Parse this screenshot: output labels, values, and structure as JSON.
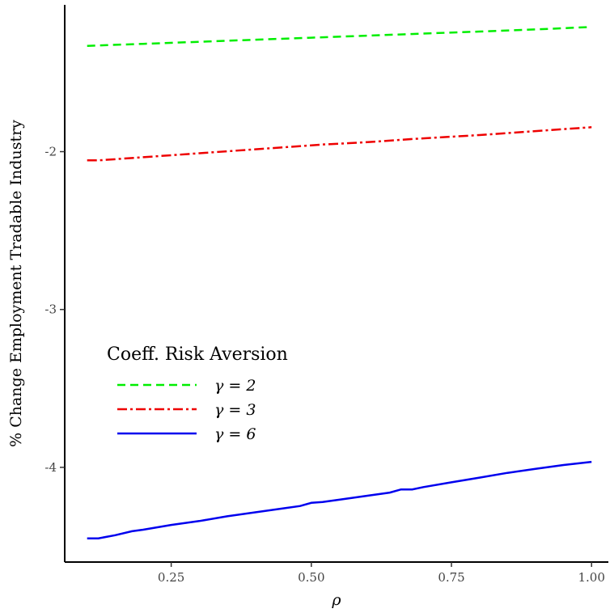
{
  "chart_data": {
    "type": "line",
    "title": "",
    "xlabel": "ρ",
    "ylabel": "% Change Employment Tradable Industry",
    "xlim": [
      0.06,
      1.03
    ],
    "ylim": [
      -4.6,
      -1.07
    ],
    "xticks": [
      0.25,
      0.5,
      0.75,
      1.0
    ],
    "xtick_labels": [
      "0.25",
      "0.50",
      "0.75",
      "1.00"
    ],
    "yticks": [
      -4,
      -3,
      -2
    ],
    "ytick_labels": [
      "-4",
      "-3",
      "-2"
    ],
    "grid": false,
    "legend": {
      "title": "Coeff. Risk Aversion",
      "placement": "center-left"
    },
    "series": [
      {
        "name": "γ = 2",
        "color": "#00ee00",
        "dash": "dashed",
        "x": [
          0.1,
          0.2,
          0.3,
          0.4,
          0.5,
          0.6,
          0.7,
          0.8,
          0.9,
          1.0
        ],
        "y": [
          -1.33,
          -1.317,
          -1.304,
          -1.291,
          -1.278,
          -1.265,
          -1.252,
          -1.239,
          -1.226,
          -1.21
        ]
      },
      {
        "name": "γ = 3",
        "color": "#ee0000",
        "dash": "dotdash",
        "x": [
          0.1,
          0.12,
          0.2,
          0.3,
          0.4,
          0.5,
          0.52,
          0.6,
          0.66,
          0.68,
          0.8,
          0.9,
          1.0
        ],
        "y": [
          -2.055,
          -2.055,
          -2.035,
          -2.01,
          -1.985,
          -1.96,
          -1.955,
          -1.94,
          -1.925,
          -1.92,
          -1.895,
          -1.87,
          -1.845
        ]
      },
      {
        "name": "γ = 6",
        "color": "#0000ee",
        "dash": "solid",
        "x": [
          0.1,
          0.12,
          0.15,
          0.18,
          0.2,
          0.25,
          0.3,
          0.35,
          0.4,
          0.45,
          0.48,
          0.5,
          0.52,
          0.55,
          0.6,
          0.64,
          0.66,
          0.68,
          0.7,
          0.75,
          0.8,
          0.85,
          0.9,
          0.95,
          1.0
        ],
        "y": [
          -4.45,
          -4.45,
          -4.43,
          -4.405,
          -4.395,
          -4.365,
          -4.34,
          -4.31,
          -4.285,
          -4.26,
          -4.245,
          -4.225,
          -4.22,
          -4.205,
          -4.18,
          -4.16,
          -4.14,
          -4.14,
          -4.125,
          -4.095,
          -4.065,
          -4.035,
          -4.01,
          -3.985,
          -3.965
        ]
      }
    ]
  }
}
